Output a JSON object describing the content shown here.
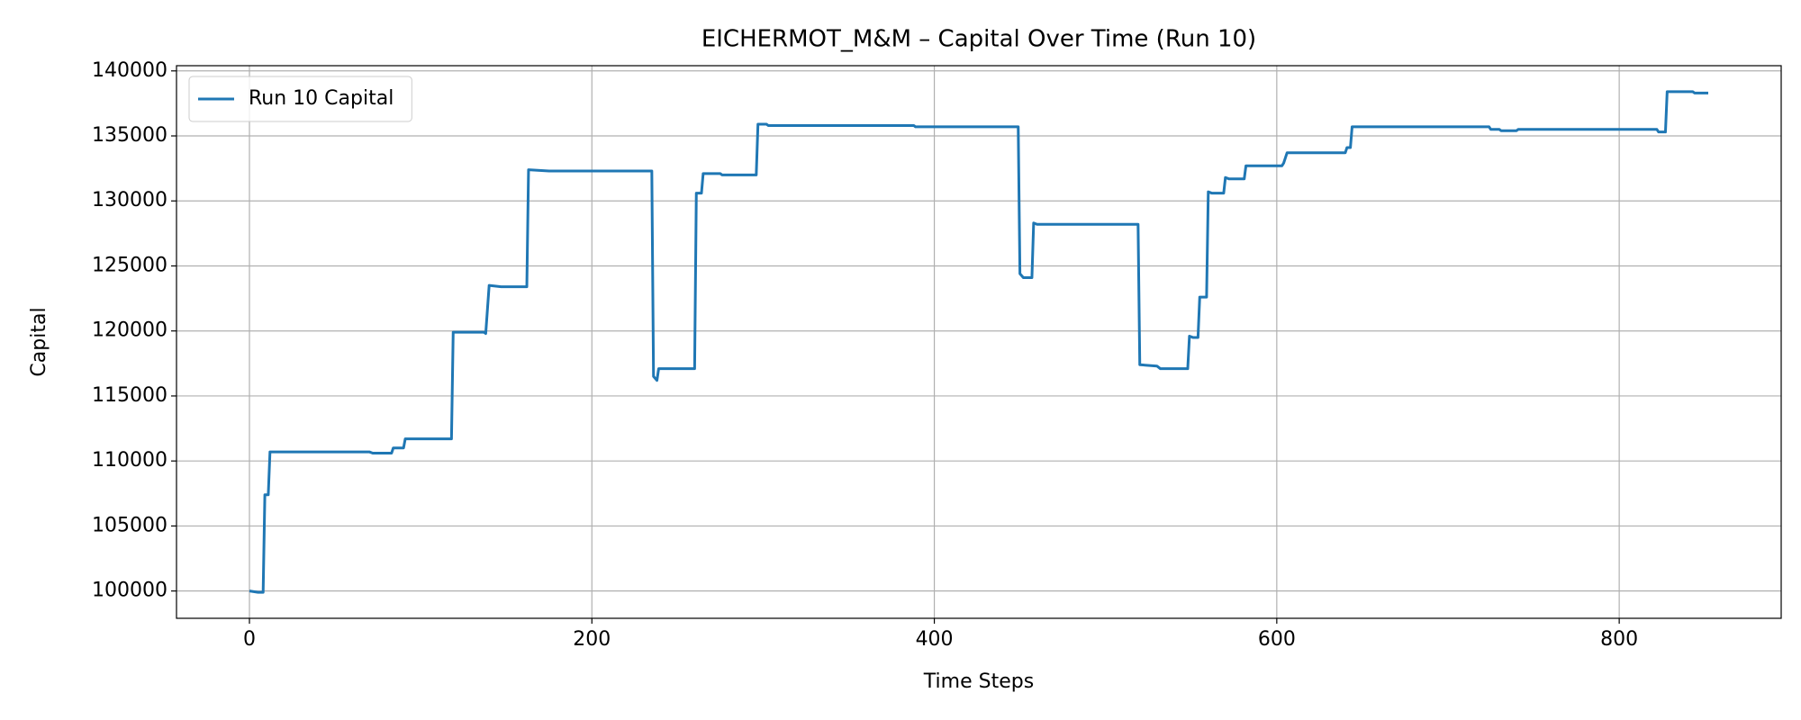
{
  "chart_data": {
    "type": "line",
    "title": "EICHERMOT_M&M – Capital Over Time (Run 10)",
    "x_label": "Time Steps",
    "y_label": "Capital",
    "x": [
      0,
      5,
      8,
      9,
      11,
      12,
      70,
      72,
      83,
      84,
      90,
      91,
      118,
      119,
      137,
      138,
      140,
      147,
      162,
      163,
      175,
      235,
      236,
      238,
      239,
      260,
      261,
      264,
      265,
      275,
      276,
      296,
      297,
      302,
      303,
      388,
      389,
      449,
      450,
      452,
      457,
      458,
      460,
      519,
      520,
      530,
      532,
      548,
      549,
      551,
      554,
      555,
      559,
      560,
      562,
      569,
      570,
      572,
      581,
      582,
      603,
      604,
      606,
      639,
      640,
      641,
      643,
      644,
      724,
      725,
      730,
      731,
      740,
      741,
      822,
      823,
      827,
      828,
      843,
      844,
      852
    ],
    "series": [
      {
        "name": "Run 10 Capital",
        "color": "#1f77b4",
        "values": [
          100000,
          99900,
          99900,
          107400,
          107400,
          110700,
          110700,
          110600,
          110600,
          111000,
          111000,
          111700,
          111700,
          119900,
          119900,
          119800,
          123500,
          123400,
          123400,
          132400,
          132300,
          132300,
          116500,
          116200,
          117100,
          117100,
          130600,
          130600,
          132100,
          132100,
          132000,
          132000,
          135900,
          135900,
          135800,
          135800,
          135700,
          135700,
          124400,
          124100,
          124100,
          128300,
          128200,
          128200,
          117400,
          117300,
          117100,
          117100,
          119600,
          119500,
          119500,
          122600,
          122600,
          130700,
          130600,
          130600,
          131800,
          131700,
          131700,
          132700,
          132700,
          132900,
          133700,
          133700,
          133700,
          134100,
          134100,
          135700,
          135700,
          135500,
          135500,
          135400,
          135400,
          135500,
          135500,
          135300,
          135300,
          138400,
          138400,
          138300,
          138300
        ]
      }
    ],
    "xlim": [
      -42.6,
      894.6
    ],
    "ylim": [
      97900,
      140400
    ],
    "xticks": [
      0,
      200,
      400,
      600,
      800
    ],
    "yticks": [
      100000,
      105000,
      110000,
      115000,
      120000,
      125000,
      130000,
      135000,
      140000
    ],
    "grid": true,
    "legend": "upper left"
  }
}
